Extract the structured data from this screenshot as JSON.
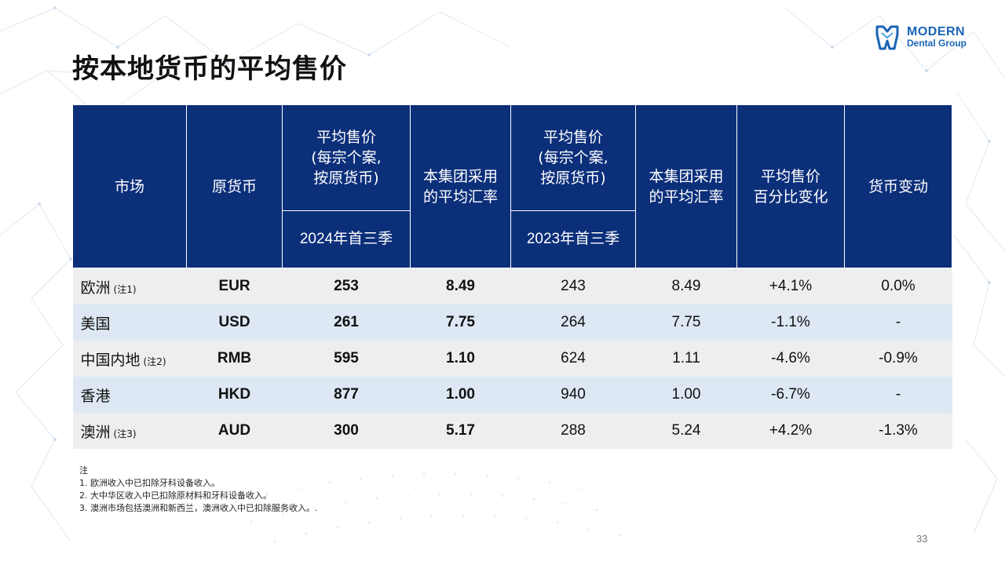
{
  "title": "按本地货币的平均售价",
  "logo": {
    "line1": "MODERN",
    "line2": "Dental Group",
    "color": "#1a64b5"
  },
  "table": {
    "headers": {
      "market": "市场",
      "currency": "原货币",
      "asp_2024": [
        "平均售价",
        "(每宗个案,",
        "按原货币)"
      ],
      "fx_2024": [
        "本集团采用",
        "的平均汇率"
      ],
      "asp_2023": [
        "平均售价",
        "(每宗个案,",
        "按原货币)"
      ],
      "fx_2023": [
        "本集团采用",
        "的平均汇率"
      ],
      "asp_change": [
        "平均售价",
        "百分比变化"
      ],
      "fx_change": "货币变动",
      "period_2024": "2024年首三季",
      "period_2023": "2023年首三季"
    },
    "rows": [
      {
        "market": "欧洲",
        "note": "(注1)",
        "currency": "EUR",
        "asp_2024": "253",
        "fx_2024": "8.49",
        "asp_2023": "243",
        "fx_2023": "8.49",
        "asp_change": "+4.1%",
        "fx_change": "0.0%"
      },
      {
        "market": "美国",
        "note": "",
        "currency": "USD",
        "asp_2024": "261",
        "fx_2024": "7.75",
        "asp_2023": "264",
        "fx_2023": "7.75",
        "asp_change": "-1.1%",
        "fx_change": "-"
      },
      {
        "market": "中国内地",
        "note": "(注2)",
        "currency": "RMB",
        "asp_2024": "595",
        "fx_2024": "1.10",
        "asp_2023": "624",
        "fx_2023": "1.11",
        "asp_change": "-4.6%",
        "fx_change": "-0.9%"
      },
      {
        "market": "香港",
        "note": "",
        "currency": "HKD",
        "asp_2024": "877",
        "fx_2024": "1.00",
        "asp_2023": "940",
        "fx_2023": "1.00",
        "asp_change": "-6.7%",
        "fx_change": "-"
      },
      {
        "market": "澳洲",
        "note": "(注3)",
        "currency": "AUD",
        "asp_2024": "300",
        "fx_2024": "5.17",
        "asp_2023": "288",
        "fx_2023": "5.24",
        "asp_change": "+4.2%",
        "fx_change": "-1.3%"
      }
    ],
    "colors": {
      "header_bg": "#0c2f7a",
      "row_odd": "#eeeeee",
      "row_even": "#dde8f4"
    }
  },
  "notes": {
    "heading": "注",
    "items": [
      "1. 欧洲收入中已扣除牙科设备收入。",
      "2. 大中华区收入中已扣除原材料和牙科设备收入。",
      "3. 澳洲市场包括澳洲和新西兰，澳洲收入中已扣除服务收入。."
    ]
  },
  "page_number": "33"
}
